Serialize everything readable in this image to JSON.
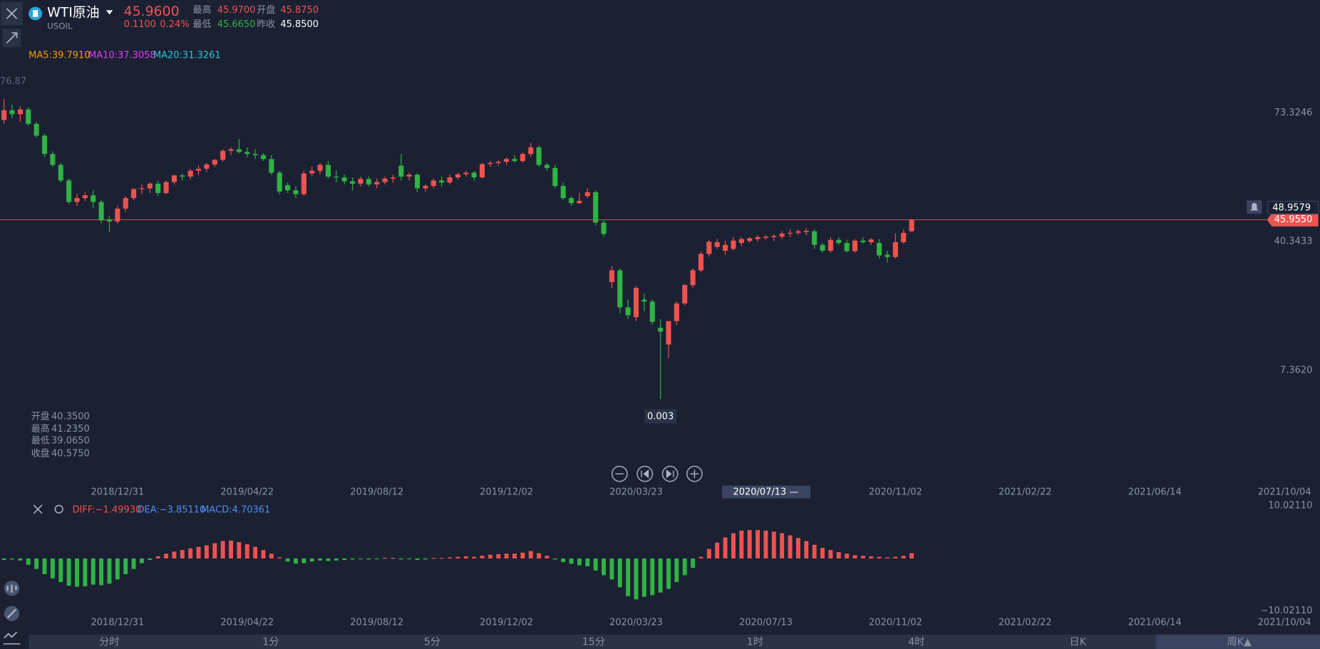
{
  "header": {
    "symbol": "WTI原油",
    "code": "USOIL",
    "price": "45.9600",
    "change": "0.1100",
    "change_pct": "0.24%",
    "stats": [
      {
        "label": "最高",
        "value": "45.9700"
      },
      {
        "label": "开盘",
        "value": "45.8750"
      },
      {
        "label": "最低",
        "value": "45.6650"
      },
      {
        "label": "昨收",
        "value": "45.8500"
      }
    ]
  },
  "ma_legend": [
    "MA5:39.7910",
    "MA10:37.3058",
    "MA20:31.3261"
  ],
  "ohlc_info": [
    {
      "label": "开盘",
      "value": "40.3500"
    },
    {
      "label": "最高",
      "value": "41.2350"
    },
    {
      "label": "最低",
      "value": "39.0650"
    },
    {
      "label": "收盘",
      "value": "40.5750"
    }
  ],
  "tabs": [
    "分时",
    "1分",
    "5分",
    "15分",
    "1时",
    "4时",
    "日K",
    "周K▲"
  ],
  "chart_data": [
    {
      "type": "candlestick",
      "up_color": "#ef5350",
      "down_color": "#2fb344",
      "candles": [
        [
          71.5,
          76.9,
          70.5,
          74.0
        ],
        [
          74.0,
          75.5,
          72.0,
          73.0
        ],
        [
          73.0,
          75.0,
          71.0,
          74.2
        ],
        [
          74.2,
          74.8,
          70.0,
          70.5
        ],
        [
          70.5,
          71.0,
          67.0,
          67.5
        ],
        [
          67.5,
          68.0,
          62.0,
          62.8
        ],
        [
          62.8,
          63.5,
          59.5,
          60.0
        ],
        [
          60.0,
          60.5,
          55.5,
          56.0
        ],
        [
          56.0,
          56.5,
          50.0,
          50.5
        ],
        [
          50.5,
          52.5,
          49.5,
          51.5
        ],
        [
          51.5,
          53.0,
          50.8,
          52.2
        ],
        [
          52.2,
          53.5,
          49.0,
          50.5
        ],
        [
          50.5,
          51.0,
          45.0,
          45.8
        ],
        [
          46.0,
          47.0,
          42.8,
          45.5
        ],
        [
          45.5,
          49.5,
          45.0,
          48.8
        ],
        [
          48.8,
          52.0,
          48.0,
          51.5
        ],
        [
          51.5,
          54.0,
          51.0,
          53.8
        ],
        [
          53.8,
          55.0,
          52.5,
          54.0
        ],
        [
          54.0,
          55.5,
          52.8,
          55.2
        ],
        [
          55.2,
          56.0,
          52.0,
          52.8
        ],
        [
          52.8,
          56.0,
          52.5,
          55.6
        ],
        [
          55.6,
          57.5,
          55.0,
          57.3
        ],
        [
          57.3,
          57.8,
          56.0,
          57.0
        ],
        [
          57.0,
          59.0,
          56.2,
          58.5
        ],
        [
          58.5,
          59.8,
          57.5,
          59.0
        ],
        [
          59.0,
          60.5,
          58.2,
          60.1
        ],
        [
          60.1,
          61.5,
          59.5,
          61.3
        ],
        [
          61.3,
          64.0,
          60.8,
          63.6
        ],
        [
          63.6,
          64.5,
          62.5,
          64.0
        ],
        [
          64.0,
          66.6,
          63.0,
          63.3
        ],
        [
          63.3,
          64.5,
          62.0,
          62.8
        ],
        [
          62.8,
          64.0,
          61.5,
          62.5
        ],
        [
          62.5,
          63.0,
          61.0,
          61.5
        ],
        [
          61.5,
          62.5,
          57.5,
          58.0
        ],
        [
          58.0,
          58.5,
          52.5,
          53.2
        ],
        [
          54.8,
          55.5,
          52.8,
          53.5
        ],
        [
          53.5,
          54.5,
          51.5,
          52.5
        ],
        [
          52.5,
          58.5,
          52.0,
          57.8
        ],
        [
          57.8,
          59.5,
          57.0,
          58.5
        ],
        [
          58.5,
          60.5,
          57.5,
          60.0
        ],
        [
          60.0,
          61.0,
          56.5,
          57.0
        ],
        [
          57.0,
          58.5,
          55.5,
          56.8
        ],
        [
          56.8,
          57.5,
          55.0,
          55.8
        ],
        [
          55.8,
          56.8,
          53.5,
          55.2
        ],
        [
          55.2,
          57.0,
          54.5,
          56.4
        ],
        [
          56.4,
          57.0,
          54.5,
          55.0
        ],
        [
          55.0,
          56.5,
          54.0,
          55.6
        ],
        [
          55.6,
          57.0,
          55.0,
          56.5
        ],
        [
          56.5,
          57.5,
          55.5,
          56.8
        ],
        [
          59.8,
          62.8,
          56.0,
          57.0
        ],
        [
          57.0,
          58.0,
          56.0,
          57.5
        ],
        [
          57.5,
          58.0,
          53.0,
          54.0
        ],
        [
          54.0,
          55.0,
          53.2,
          54.6
        ],
        [
          54.6,
          56.5,
          54.0,
          56.0
        ],
        [
          56.0,
          57.0,
          54.5,
          55.5
        ],
        [
          55.5,
          57.5,
          55.0,
          56.8
        ],
        [
          56.8,
          58.0,
          56.2,
          57.6
        ],
        [
          57.6,
          58.5,
          57.0,
          58.0
        ],
        [
          58.0,
          58.5,
          56.0,
          56.8
        ],
        [
          56.8,
          60.5,
          56.5,
          60.2
        ],
        [
          60.2,
          61.0,
          59.5,
          60.5
        ],
        [
          60.5,
          61.2,
          59.8,
          60.8
        ],
        [
          60.8,
          62.0,
          60.0,
          61.5
        ],
        [
          61.5,
          62.5,
          60.5,
          61.0
        ],
        [
          61.0,
          63.2,
          60.5,
          62.8
        ],
        [
          62.8,
          65.6,
          62.0,
          64.5
        ],
        [
          64.5,
          65.0,
          59.5,
          60.0
        ],
        [
          60.0,
          60.5,
          58.5,
          59.2
        ],
        [
          59.2,
          60.0,
          54.0,
          54.6
        ],
        [
          54.6,
          55.5,
          51.0,
          51.5
        ],
        [
          51.5,
          52.0,
          49.5,
          50.2
        ],
        [
          50.2,
          52.8,
          50.0,
          50.8
        ],
        [
          52.0,
          54.0,
          51.5,
          53.0
        ],
        [
          53.0,
          53.5,
          44.5,
          45.2
        ],
        [
          45.2,
          46.0,
          41.5,
          42.3
        ],
        [
          30.0,
          34.0,
          28.5,
          33.0
        ],
        [
          33.0,
          33.5,
          22.0,
          23.5
        ],
        [
          23.5,
          25.5,
          20.5,
          21.5
        ],
        [
          21.0,
          29.0,
          20.0,
          28.5
        ],
        [
          25.5,
          27.0,
          22.5,
          25.0
        ],
        [
          25.0,
          25.5,
          19.0,
          19.8
        ],
        [
          18.3,
          20.5,
          0.003,
          17.3
        ],
        [
          14.0,
          20.0,
          10.5,
          20.0
        ],
        [
          20.0,
          25.0,
          19.0,
          24.5
        ],
        [
          24.5,
          29.5,
          24.0,
          29.2
        ],
        [
          29.2,
          33.5,
          28.5,
          33.0
        ],
        [
          33.0,
          37.8,
          32.5,
          37.2
        ],
        [
          37.2,
          40.8,
          36.5,
          40.3
        ],
        [
          39.0,
          41.0,
          38.5,
          40.2
        ],
        [
          38.0,
          40.5,
          37.0,
          39.5
        ],
        [
          38.5,
          41.5,
          38.0,
          40.6
        ],
        [
          40.0,
          41.5,
          39.2,
          41.0
        ],
        [
          40.5,
          41.5,
          40.0,
          41.2
        ],
        [
          41.0,
          42.0,
          40.3,
          41.5
        ],
        [
          41.3,
          42.0,
          40.8,
          41.6
        ],
        [
          41.5,
          42.2,
          40.5,
          41.8
        ],
        [
          41.6,
          43.0,
          41.0,
          42.4
        ],
        [
          42.4,
          43.5,
          41.5,
          42.6
        ],
        [
          42.6,
          43.5,
          42.0,
          43.0
        ],
        [
          42.8,
          43.8,
          42.0,
          43.1
        ],
        [
          43.0,
          43.5,
          38.5,
          39.5
        ],
        [
          39.5,
          40.0,
          37.5,
          38.0
        ],
        [
          38.0,
          41.5,
          37.5,
          40.8
        ],
        [
          40.8,
          41.5,
          39.5,
          40.0
        ],
        [
          40.0,
          40.8,
          37.5,
          37.9
        ],
        [
          37.9,
          41.0,
          37.5,
          40.6
        ],
        [
          40.6,
          41.5,
          39.8,
          40.2
        ],
        [
          40.2,
          41.3,
          39.6,
          40.9
        ],
        [
          40.0,
          41.0,
          36.0,
          36.8
        ],
        [
          37.0,
          38.0,
          35.0,
          36.4
        ],
        [
          36.4,
          42.5,
          36.0,
          40.2
        ],
        [
          40.2,
          43.5,
          39.8,
          42.6
        ],
        [
          43.0,
          46.2,
          42.8,
          45.96
        ]
      ],
      "low_label_index": 81,
      "xlim": [
        -0.5,
        160
      ],
      "xticks": [
        {
          "value": 14,
          "label": "2018/12/31"
        },
        {
          "value": 30,
          "label": "2019/04/22"
        },
        {
          "value": 46,
          "label": "2019/08/12"
        },
        {
          "value": 62,
          "label": "2019/12/02"
        },
        {
          "value": 78,
          "label": "2020/03/23"
        },
        {
          "value": 94,
          "label": "2020/07/13"
        },
        {
          "value": 110,
          "label": "2020/11/02"
        },
        {
          "value": 126,
          "label": "2021/02/22"
        },
        {
          "value": 142,
          "label": "2021/06/14"
        },
        {
          "value": 158,
          "label": "2021/10/04"
        }
      ],
      "crosshair_date": "2020/07/13 —",
      "ylim": [
        -16.35,
        83.89
      ],
      "yticks": [
        73.3246,
        40.3433,
        {
          "value": 7.362,
          "label": "7.3620"
        }
      ],
      "top_label": "76.87",
      "crosshair_price": 48.9579,
      "last_price": {
        "value": 45.955,
        "label": "45.9550"
      }
    },
    {
      "type": "macd",
      "up_color": "#ef5350",
      "down_color": "#2fb344",
      "legend": [
        "DIFF:−1.49930",
        "DEA:−3.85110",
        "MACD:4.70361"
      ],
      "values": [
        -0.3,
        -0.2,
        -0.4,
        -1.2,
        -2.0,
        -3.0,
        -3.8,
        -4.5,
        -5.2,
        -5.4,
        -5.3,
        -5.0,
        -5.1,
        -4.8,
        -4.0,
        -3.0,
        -2.0,
        -0.9,
        -0.3,
        0.4,
        0.9,
        1.3,
        1.6,
        1.9,
        2.2,
        2.5,
        2.9,
        3.3,
        3.4,
        3.1,
        2.7,
        2.2,
        1.6,
        0.9,
        0.2,
        -0.6,
        -1.0,
        -0.9,
        -0.6,
        -0.4,
        -0.5,
        -0.4,
        -0.3,
        -0.2,
        -0.1,
        -0.2,
        -0.1,
        0.1,
        0.1,
        -0.2,
        -0.1,
        -0.3,
        -0.2,
        0.1,
        0.1,
        0.2,
        0.3,
        0.4,
        0.3,
        0.5,
        0.7,
        0.8,
        0.9,
        0.9,
        1.1,
        1.4,
        1.0,
        0.5,
        -0.2,
        -0.7,
        -1.0,
        -1.3,
        -1.5,
        -2.3,
        -3.2,
        -4.0,
        -5.5,
        -7.2,
        -7.8,
        -7.3,
        -7.0,
        -6.5,
        -5.8,
        -4.5,
        -3.2,
        -1.8,
        0.3,
        1.8,
        3.0,
        4.0,
        4.8,
        5.3,
        5.4,
        5.4,
        5.3,
        5.1,
        4.8,
        4.4,
        3.9,
        3.3,
        2.6,
        2.0,
        1.6,
        1.2,
        0.9,
        0.6,
        0.5,
        0.4,
        0.3,
        0.2,
        0.3,
        0.5,
        1.0
      ],
      "xlim": [
        -0.5,
        160
      ],
      "xticks": [
        {
          "value": 14,
          "label": "2018/12/31"
        },
        {
          "value": 30,
          "label": "2019/04/22"
        },
        {
          "value": 46,
          "label": "2019/08/12"
        },
        {
          "value": 62,
          "label": "2019/12/02"
        },
        {
          "value": 78,
          "label": "2020/03/23"
        },
        {
          "value": 94,
          "label": "2020/07/13"
        },
        {
          "value": 110,
          "label": "2020/11/02"
        },
        {
          "value": 126,
          "label": "2021/02/22"
        },
        {
          "value": 142,
          "label": "2021/06/14"
        },
        {
          "value": 158,
          "label": "2021/10/04"
        }
      ],
      "ylim": [
        -11.46,
        11.78
      ],
      "yticks": [
        {
          "value": 10.0211,
          "label": "10.02110"
        },
        {
          "value": -10.0211,
          "label": "−10.02110"
        }
      ]
    }
  ]
}
